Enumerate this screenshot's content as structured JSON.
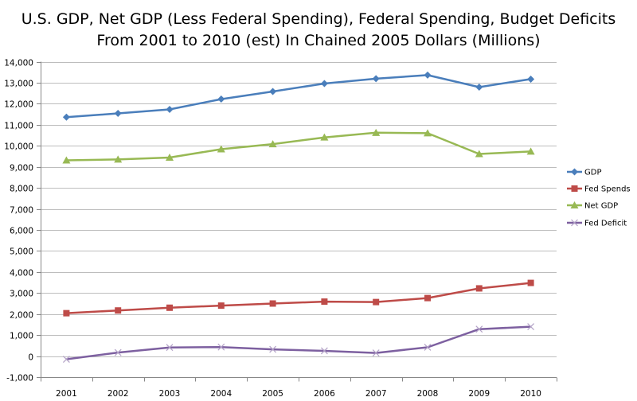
{
  "chart_data": {
    "type": "line",
    "title": [
      "U.S. GDP, Net GDP (Less Federal Spending), Federal Spending, Budget Deficits",
      "From 2001 to 2010 (est) In Chained 2005 Dollars (Millions)"
    ],
    "xlabel": "",
    "ylabel": "",
    "categories": [
      "2001",
      "2002",
      "2003",
      "2004",
      "2005",
      "2006",
      "2007",
      "2008",
      "2009",
      "2010"
    ],
    "ylim": [
      -1000,
      14000
    ],
    "yticks": [
      -1000,
      0,
      1000,
      2000,
      3000,
      4000,
      5000,
      6000,
      7000,
      8000,
      9000,
      10000,
      11000,
      12000,
      13000,
      14000
    ],
    "ytick_labels": [
      "-1,000",
      "0",
      "1,000",
      "2,000",
      "3,000",
      "4,000",
      "5,000",
      "6,000",
      "7,000",
      "8,000",
      "9,000",
      "10,000",
      "11,000",
      "12,000",
      "13,000",
      "14,000"
    ],
    "grid": true,
    "legend_position": "right",
    "series": [
      {
        "name": "GDP",
        "color": "#4a7ebb",
        "marker": "diamond",
        "values": [
          11360,
          11540,
          11730,
          12220,
          12580,
          12960,
          13190,
          13360,
          12790,
          13170
        ]
      },
      {
        "name": "Fed Spends",
        "color": "#be4b48",
        "marker": "square",
        "values": [
          2040,
          2170,
          2300,
          2400,
          2500,
          2590,
          2570,
          2760,
          3220,
          3480
        ]
      },
      {
        "name": "Net GDP",
        "color": "#98b954",
        "marker": "triangle",
        "values": [
          9310,
          9350,
          9440,
          9840,
          10080,
          10400,
          10620,
          10600,
          9610,
          9730
        ]
      },
      {
        "name": "Fed Deficit",
        "color": "#7d60a0",
        "marker": "x",
        "values": [
          -150,
          170,
          410,
          430,
          320,
          250,
          150,
          420,
          1280,
          1400
        ]
      }
    ]
  }
}
